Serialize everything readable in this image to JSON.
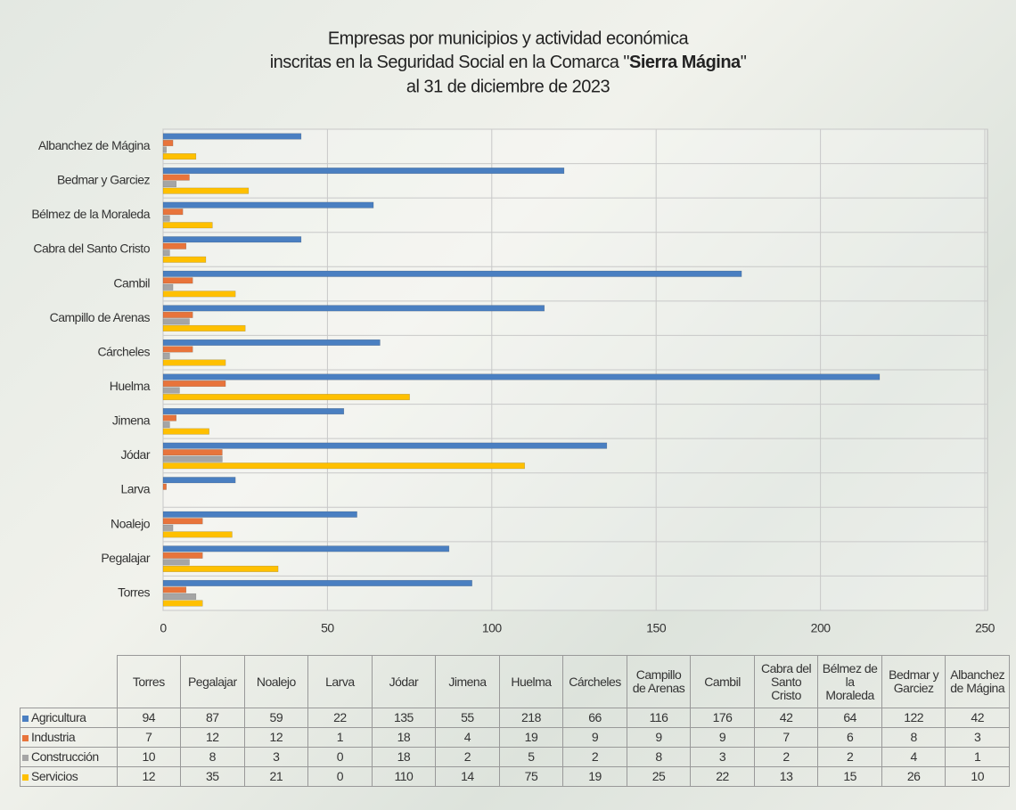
{
  "chart_data": {
    "type": "hbar",
    "title": [
      "Empresas por municipios y actividad económica",
      [
        "inscritas en la Seguridad Social en la Comarca \"",
        "Sierra Mágina",
        "\""
      ],
      "al 31 de diciembre de 2023"
    ],
    "categories": [
      "Torres",
      "Pegalajar",
      "Noalejo",
      "Larva",
      "Jódar",
      "Jimena",
      "Huelma",
      "Cárcheles",
      "Campillo de Arenas",
      "Cambil",
      "Cabra del Santo Cristo",
      "Bélmez de la Moraleda",
      "Bedmar y Garciez",
      "Albanchez de Mágina"
    ],
    "series": [
      {
        "name": "Agricultura",
        "color": "#4a7fc1",
        "values": [
          94,
          87,
          59,
          22,
          135,
          55,
          218,
          66,
          116,
          176,
          42,
          64,
          122,
          42
        ]
      },
      {
        "name": "Industria",
        "color": "#e8743b",
        "values": [
          7,
          12,
          12,
          1,
          18,
          4,
          19,
          9,
          9,
          9,
          7,
          6,
          8,
          3
        ]
      },
      {
        "name": "Construcción",
        "color": "#a5a5a5",
        "values": [
          10,
          8,
          3,
          0,
          18,
          2,
          5,
          2,
          8,
          3,
          2,
          2,
          4,
          1
        ]
      },
      {
        "name": "Servicios",
        "color": "#ffc000",
        "values": [
          12,
          35,
          21,
          0,
          110,
          14,
          75,
          19,
          25,
          22,
          13,
          15,
          26,
          10
        ]
      }
    ],
    "xlim": [
      0,
      250
    ],
    "xticks": [
      0,
      50,
      100,
      150,
      200,
      250
    ],
    "grid": true,
    "data_table": true
  }
}
